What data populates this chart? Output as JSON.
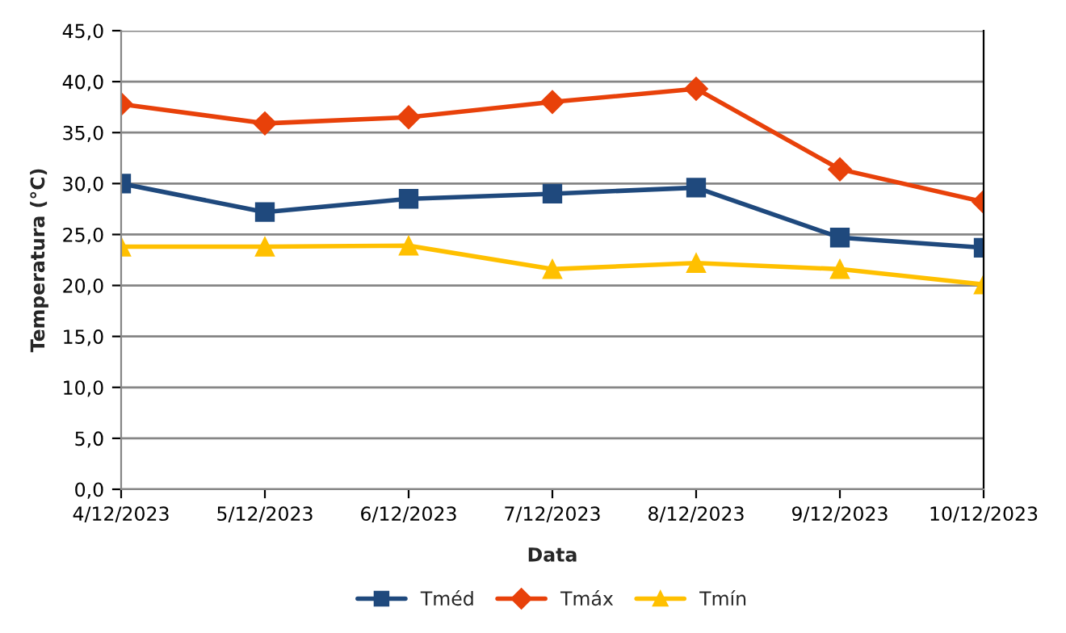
{
  "chart_data": {
    "type": "line",
    "xlabel": "Data",
    "ylabel": "Temperatura (°C)",
    "categories": [
      "4/12/2023",
      "5/12/2023",
      "6/12/2023",
      "7/12/2023",
      "8/12/2023",
      "9/12/2023",
      "10/12/2023"
    ],
    "series": [
      {
        "name": "Tméd",
        "color": "#1f497d",
        "marker": "square",
        "values": [
          30.0,
          27.2,
          28.5,
          29.0,
          29.6,
          24.7,
          23.7
        ]
      },
      {
        "name": "Tmáx",
        "color": "#e8410a",
        "marker": "diamond",
        "values": [
          37.8,
          35.9,
          36.5,
          38.0,
          39.3,
          31.4,
          28.2
        ]
      },
      {
        "name": "Tmín",
        "color": "#ffc000",
        "marker": "triangle",
        "values": [
          23.8,
          23.8,
          23.9,
          21.6,
          22.2,
          21.6,
          20.1
        ]
      }
    ],
    "ylim": [
      0,
      45
    ],
    "yticks": [
      {
        "value": 0,
        "label": "0,0"
      },
      {
        "value": 5,
        "label": "5,0"
      },
      {
        "value": 10,
        "label": "10,0"
      },
      {
        "value": 15,
        "label": "15,0"
      },
      {
        "value": 20,
        "label": "20,0"
      },
      {
        "value": 25,
        "label": "25,0"
      },
      {
        "value": 30,
        "label": "30,0"
      },
      {
        "value": 35,
        "label": "35,0"
      },
      {
        "value": 40,
        "label": "40,0"
      },
      {
        "value": 45,
        "label": "45,0"
      }
    ],
    "grid": "y",
    "legend": "bottom"
  }
}
